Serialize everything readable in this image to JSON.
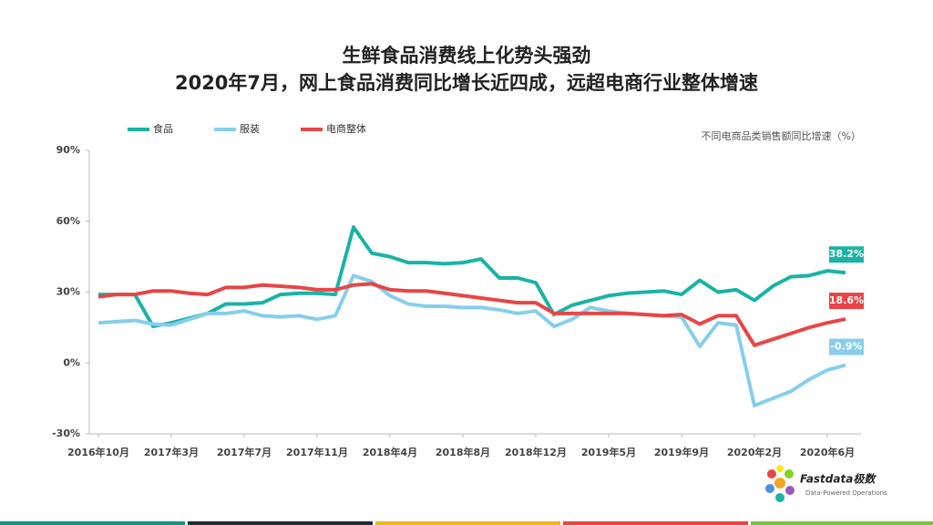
{
  "chart_data": {
    "type": "line",
    "title": "生鲜食品消费线上化势头强劲",
    "subtitle": "2020年7月，网上食品消费同比增长近四成，远超电商行业整体增速",
    "unit_label": "不同电商品类销售额同比增速（%）",
    "brand": "Fastdata极数",
    "brand_tagline": "Data-Powered Operations",
    "categories": [
      "2016年10月",
      null,
      null,
      null,
      "2017年3月",
      null,
      null,
      null,
      "2017年7月",
      null,
      null,
      null,
      "2017年11月",
      null,
      null,
      null,
      "2018年4月",
      null,
      null,
      null,
      "2018年8月",
      null,
      null,
      null,
      "2018年12月",
      null,
      null,
      null,
      "2019年5月",
      null,
      null,
      null,
      "2019年9月",
      null,
      null,
      null,
      "2020年2月",
      null,
      null,
      null,
      "2020年6月",
      null
    ],
    "series": [
      {
        "name": "食品",
        "color": "#1ab3a6",
        "values": [
          29,
          29,
          29,
          15.5,
          17,
          19,
          21,
          25,
          25,
          25.5,
          29,
          29.5,
          29.5,
          29,
          57.5,
          46.5,
          45,
          42.5,
          42.5,
          42,
          42.5,
          44,
          36,
          36,
          34,
          20.5,
          24.5,
          26.5,
          28.5,
          29.5,
          30,
          30.5,
          29,
          35,
          30,
          31,
          26.5,
          32.5,
          36.5,
          37,
          39,
          38.2
        ],
        "value_labels": [
          null,
          null,
          null,
          null,
          null,
          null,
          null,
          null,
          null,
          null,
          null,
          null,
          null,
          null,
          null,
          null,
          null,
          null,
          null,
          null,
          null,
          null,
          null,
          null,
          null,
          null,
          null,
          null,
          null,
          null,
          null,
          null,
          null,
          null,
          null,
          null,
          null,
          null,
          null,
          null,
          null,
          "38.2%"
        ]
      },
      {
        "name": "服装",
        "color": "#87ceeb",
        "values": [
          17,
          17.5,
          18,
          16.5,
          16,
          18.5,
          21,
          21,
          22,
          20,
          19.5,
          20,
          18.5,
          20,
          37,
          34.5,
          28.5,
          25,
          24,
          24,
          23.5,
          23.5,
          22.5,
          21,
          22,
          15.5,
          18.5,
          23.5,
          22,
          21,
          20.5,
          20,
          19.5,
          7,
          17,
          16,
          -18,
          -15,
          -12,
          -7,
          -3,
          -0.9
        ],
        "value_labels": [
          null,
          null,
          null,
          null,
          null,
          null,
          null,
          null,
          null,
          null,
          null,
          null,
          null,
          null,
          null,
          null,
          null,
          null,
          null,
          null,
          null,
          null,
          null,
          null,
          null,
          null,
          null,
          null,
          null,
          null,
          null,
          null,
          null,
          null,
          null,
          null,
          null,
          null,
          null,
          null,
          null,
          "-0.9%"
        ]
      },
      {
        "name": "电商整体",
        "color": "#e84545",
        "values": [
          28,
          29,
          29,
          30.5,
          30.5,
          29.5,
          29,
          32,
          32,
          33,
          32.5,
          32,
          31,
          31,
          33,
          33.5,
          31,
          30.5,
          30.5,
          29.5,
          28.5,
          27.5,
          26.5,
          25.5,
          25.5,
          21,
          21,
          21,
          21,
          21,
          20.5,
          20,
          20.5,
          16.5,
          20,
          20,
          7.5,
          10,
          12.5,
          15,
          17,
          18.6
        ],
        "value_labels": [
          null,
          null,
          null,
          null,
          null,
          null,
          null,
          null,
          null,
          null,
          null,
          null,
          null,
          null,
          null,
          null,
          null,
          null,
          null,
          null,
          null,
          null,
          null,
          null,
          null,
          null,
          null,
          null,
          null,
          null,
          null,
          null,
          null,
          null,
          null,
          null,
          null,
          null,
          null,
          null,
          null,
          "18.6%"
        ]
      }
    ],
    "ylim": [
      -30,
      90
    ],
    "yticks": [
      {
        "value": -30,
        "label": "-30%"
      },
      {
        "value": 0,
        "label": "0%"
      },
      {
        "value": 30,
        "label": "30%"
      },
      {
        "value": 60,
        "label": "60%"
      },
      {
        "value": 90,
        "label": "90%"
      }
    ],
    "grid": false,
    "legend": "top"
  }
}
